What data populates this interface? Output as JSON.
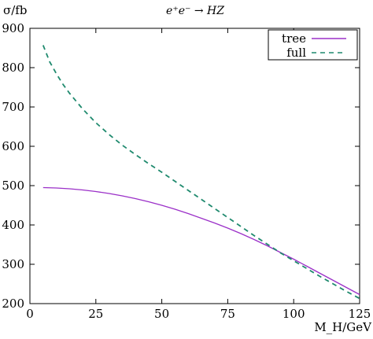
{
  "chart_data": {
    "type": "line",
    "title": "e⁺e⁻ → HZ",
    "ylabel": "σ/fb",
    "xlabel": "M_H/GeV",
    "xlim": [
      0,
      125
    ],
    "ylim": [
      200,
      900
    ],
    "xticks": [
      0,
      25,
      50,
      75,
      100,
      125
    ],
    "yticks": [
      200,
      300,
      400,
      500,
      600,
      700,
      800,
      900
    ],
    "grid": false,
    "legend_position": "top-right",
    "series": [
      {
        "name": "tree",
        "color": "#9b30c8",
        "dash": "solid",
        "x": [
          5,
          10,
          15,
          20,
          25,
          30,
          35,
          40,
          45,
          50,
          55,
          60,
          65,
          70,
          75,
          80,
          85,
          90,
          95,
          100,
          105,
          110,
          115,
          120,
          125
        ],
        "y": [
          495,
          494,
          492,
          489,
          485,
          480,
          474,
          467,
          459,
          450,
          440,
          429,
          417,
          405,
          392,
          378,
          363,
          347,
          330,
          313,
          295,
          277,
          259,
          241,
          223
        ]
      },
      {
        "name": "full",
        "color": "#1f8a6e",
        "dash": "dashed",
        "x": [
          5,
          7.5,
          10,
          12.5,
          15,
          20,
          25,
          30,
          35,
          40,
          45,
          50,
          55,
          60,
          65,
          70,
          75,
          80,
          85,
          90,
          95,
          100,
          105,
          110,
          115,
          120,
          125
        ],
        "y": [
          857,
          815,
          785,
          758,
          735,
          695,
          660,
          630,
          603,
          579,
          556,
          534,
          511,
          488,
          465,
          442,
          419,
          396,
          373,
          351,
          329,
          309,
          289,
          269,
          250,
          231,
          213
        ]
      }
    ]
  }
}
